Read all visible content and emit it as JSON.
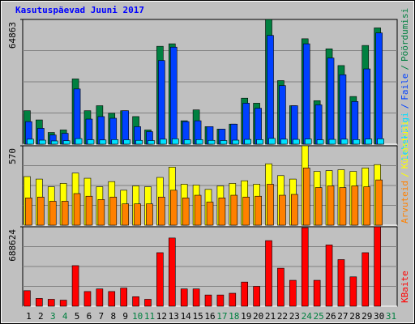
{
  "chart_data": {
    "type": "bar",
    "title": "Kasutuspäevad Juuni 2017",
    "legend_separator": "/",
    "categories": [
      "1",
      "2",
      "3",
      "4",
      "5",
      "6",
      "7",
      "8",
      "9",
      "10",
      "11",
      "12",
      "13",
      "14",
      "15",
      "16",
      "17",
      "18",
      "19",
      "20",
      "21",
      "22",
      "23",
      "24",
      "25",
      "26",
      "27",
      "28",
      "29",
      "30",
      "31"
    ],
    "category_colors": [
      "#000000",
      "#000000",
      "#008040",
      "#008040",
      "#000000",
      "#000000",
      "#000000",
      "#000000",
      "#000000",
      "#008040",
      "#008040",
      "#000000",
      "#000000",
      "#000000",
      "#000000",
      "#000000",
      "#008040",
      "#008040",
      "#000000",
      "#000000",
      "#000000",
      "#000000",
      "#000000",
      "#008040",
      "#008040",
      "#000000",
      "#000000",
      "#000000",
      "#000000",
      "#000000",
      "#008040"
    ],
    "panels": [
      {
        "ylim": [
          0,
          64863
        ],
        "yticks": [
          64863
        ],
        "series": [
          {
            "name": "Pöördumisi",
            "color": "#008040",
            "values": [
              17400,
              12615,
              6090,
              7395,
              33930,
              17400,
              20010,
              16095,
              17400,
              14355,
              7395,
              50895,
              52200,
              12180,
              17835,
              9135,
              7830,
              10440,
              23925,
              21315,
              64863,
              33060,
              20010,
              54810,
              22620,
              49590,
              40890,
              24795,
              51330,
              60465,
              null
            ]
          },
          {
            "name": "Faile",
            "color": "#0040ff",
            "values": [
              11745,
              8265,
              4785,
              5655,
              28710,
              13050,
              14355,
              13485,
              17400,
              9135,
              6525,
              43500,
              50460,
              11745,
              12180,
              9135,
              7830,
              10440,
              21315,
              18705,
              56550,
              30450,
              20010,
              52200,
              20445,
              44805,
              36105,
              22185,
              39150,
              57855,
              null
            ]
          },
          {
            "name": "Lehekülgi",
            "color": "#00e0ff",
            "values": [
              2600,
              2100,
              1700,
              1800,
              2900,
              2300,
              2200,
              2400,
              2300,
              2000,
              1900,
              2600,
              2800,
              2300,
              2400,
              2000,
              1900,
              2100,
              2500,
              2400,
              3000,
              2600,
              2500,
              2700,
              2300,
              2500,
              2600,
              2400,
              2700,
              2800,
              null
            ]
          }
        ]
      },
      {
        "ylim": [
          0,
          570
        ],
        "yticks": [
          570
        ],
        "series": [
          {
            "name": "Külastusi",
            "color": "#ffff00",
            "values": [
              349,
              331,
              276,
              300,
              374,
              337,
              276,
              313,
              251,
              282,
              276,
              343,
              417,
              294,
              288,
              257,
              282,
              300,
              319,
              294,
              441,
              356,
              331,
              570,
              386,
              392,
              398,
              386,
              411,
              435,
              null
            ]
          },
          {
            "name": "Arvuteid",
            "color": "#ff8000",
            "values": [
              196,
              202,
              172,
              172,
              227,
              208,
              184,
              202,
              153,
              153,
              153,
              202,
              251,
              196,
              215,
              166,
              196,
              215,
              202,
              208,
              294,
              215,
              221,
              411,
              270,
              282,
              270,
              282,
              276,
              325,
              null
            ]
          }
        ]
      },
      {
        "ylim": [
          0,
          688624
        ],
        "yticks": [
          688624
        ],
        "series": [
          {
            "name": "KBaite",
            "color": "#ff0000",
            "values": [
              134730,
              67365,
              59880,
              52395,
              351795,
              127245,
              149700,
              127245,
              157185,
              82335,
              59880,
              464070,
              591315,
              149700,
              149700,
              97305,
              97305,
              112275,
              209580,
              172155,
              568860,
              329340,
              224550,
              681135,
              224550,
              531435,
              404190,
              254490,
              464070,
              688624,
              null
            ]
          }
        ]
      }
    ]
  }
}
